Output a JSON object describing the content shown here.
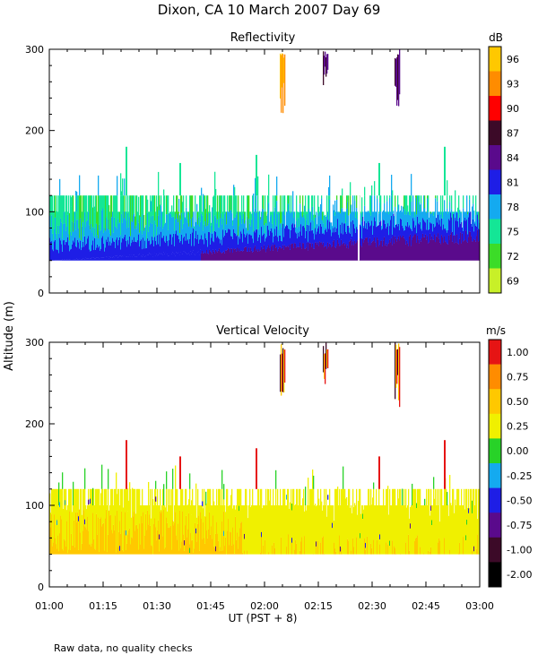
{
  "page": {
    "title": "Dixon, CA 10 March 2007  Day  69",
    "ylabel": "Altitude (m)",
    "xlabel": "UT  (PST + 8)",
    "footnote": "Raw data, no quality checks"
  },
  "chart_data": [
    {
      "type": "heatmap",
      "title": "Reflectivity",
      "xlabel": "UT (PST + 8)",
      "ylabel": "Altitude (m)",
      "xlim": [
        "01:00",
        "03:00"
      ],
      "ylim": [
        0,
        300
      ],
      "yticks": [
        0,
        100,
        200,
        300
      ],
      "xticks": [
        "01:00",
        "01:15",
        "01:30",
        "01:45",
        "02:00",
        "02:15",
        "02:30",
        "02:45",
        "03:00"
      ],
      "colorbar": {
        "unit": "dB",
        "labels": [
          "96",
          "93",
          "90",
          "87",
          "84",
          "81",
          "78",
          "75",
          "72",
          "69"
        ],
        "colors": [
          "#ffc800",
          "#ff8c00",
          "#ff0000",
          "#3c0a28",
          "#5a0a8c",
          "#1e1ee6",
          "#14aaf0",
          "#14e696",
          "#3cdc28",
          "#c8f028"
        ]
      },
      "features": {
        "near_surface_echo_altitude_m": [
          40,
          120
        ],
        "max_clutter_spike_altitude_m": 180,
        "elevated_echo_times": [
          "02:05",
          "02:17",
          "02:37"
        ],
        "elevated_echo_altitude_m": [
          220,
          300
        ]
      }
    },
    {
      "type": "heatmap",
      "title": "Vertical Velocity",
      "xlabel": "UT (PST + 8)",
      "ylabel": "Altitude (m)",
      "xlim": [
        "01:00",
        "03:00"
      ],
      "ylim": [
        0,
        300
      ],
      "yticks": [
        0,
        100,
        200,
        300
      ],
      "xticks": [
        "01:00",
        "01:15",
        "01:30",
        "01:45",
        "02:00",
        "02:15",
        "02:30",
        "02:45",
        "03:00"
      ],
      "colorbar": {
        "unit": "m/s",
        "labels": [
          "1.00",
          "0.75",
          "0.50",
          "0.25",
          "0.00",
          "-0.25",
          "-0.50",
          "-0.75",
          "-1.00",
          "-2.00"
        ],
        "colors": [
          "#e61414",
          "#ff8c00",
          "#ffc800",
          "#f0f000",
          "#28d228",
          "#14aaf0",
          "#1e1ee6",
          "#5a0a8c",
          "#3c0a28",
          "#000000"
        ]
      },
      "features": {
        "near_surface_echo_altitude_m": [
          40,
          120
        ],
        "dominant_velocity_ms": 0.5,
        "elevated_echo_times": [
          "02:05",
          "02:17",
          "02:37"
        ],
        "elevated_echo_altitude_m": [
          220,
          300
        ]
      }
    }
  ]
}
